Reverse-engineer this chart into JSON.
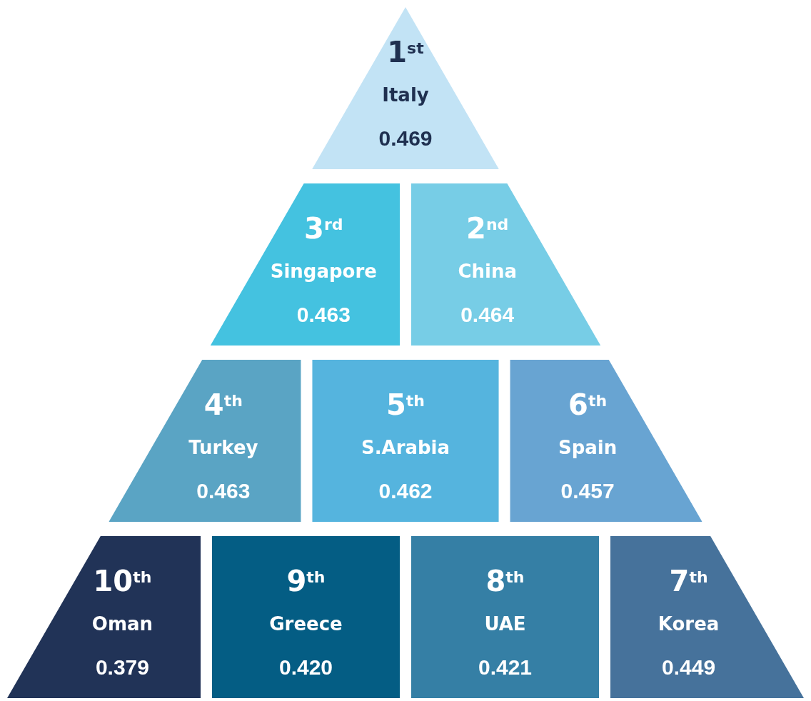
{
  "chart_data": {
    "type": "other",
    "categories": [
      "Italy",
      "Singapore",
      "China",
      "Turkey",
      "S.Arabia",
      "Spain",
      "Oman",
      "Greece",
      "UAE",
      "Korea"
    ],
    "values": [
      0.469,
      0.463,
      0.464,
      0.463,
      0.462,
      0.457,
      0.379,
      0.42,
      0.421,
      0.449
    ],
    "value_labels": [
      "0.469",
      "0.463",
      "0.464",
      "0.463",
      "0.462",
      "0.457",
      "0.379",
      "0.420",
      "0.421",
      "0.449"
    ],
    "annotations": [
      "1$^{st}$",
      "3$^{rd}$",
      "2$^{nd}$",
      "4$^{th}$",
      "5$^{th}$",
      "6$^{th}$",
      "10$^{th}$",
      "9$^{th}$",
      "8$^{th}$",
      "7$^{th}$"
    ],
    "colors": [
      "#c2e3f5",
      "#44c2e0",
      "#77cde6",
      "#5aa4c4",
      "#55b4de",
      "#68a4d2",
      "#213357",
      "#045d84",
      "#357fa5",
      "#46729b"
    ]
  }
}
